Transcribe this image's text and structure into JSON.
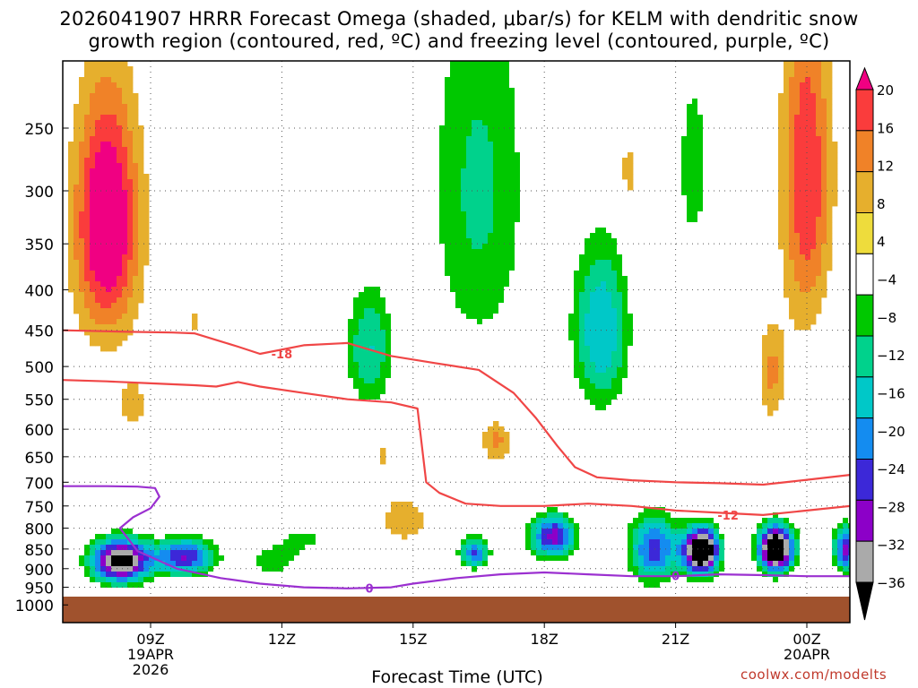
{
  "title": {
    "line1": "2026041907 HRRR Forecast Omega (shaded, μbar/s) for KELM with dendritic snow",
    "line2": "growth region (contoured, red, ºC) and freezing level (contoured, purple, ºC)"
  },
  "credit": "coolwx.com/modelts",
  "chart_data": {
    "type": "heatmap",
    "title": "2026041907 HRRR Forecast Omega (shaded, μbar/s) for KELM with dendritic snow growth region (contoured, red, ºC) and freezing level (contoured, purple, ºC)",
    "xlabel": "Forecast Time (UTC)",
    "ylabel": "",
    "x_ticks": [
      {
        "hour": 9,
        "label": "09Z",
        "date": "19APR",
        "year": "2026"
      },
      {
        "hour": 12,
        "label": "12Z"
      },
      {
        "hour": 15,
        "label": "15Z"
      },
      {
        "hour": 18,
        "label": "18Z"
      },
      {
        "hour": 21,
        "label": "21Z"
      },
      {
        "hour": 24,
        "label": "00Z",
        "date": "20APR"
      }
    ],
    "xlim": [
      7,
      25
    ],
    "y_ticks": [
      250,
      300,
      350,
      400,
      450,
      500,
      550,
      600,
      650,
      700,
      750,
      800,
      850,
      900,
      950,
      1000
    ],
    "ylim_hPa": [
      200,
      1015
    ],
    "surface_pressure_hPa": 970,
    "colorbar": {
      "levels": [
        -36,
        -32,
        -28,
        -24,
        -20,
        -16,
        -12,
        -8,
        -4,
        4,
        8,
        12,
        16,
        20
      ],
      "labels": [
        "20",
        "16",
        "12",
        "8",
        "4",
        "−4",
        "−8",
        "−12",
        "−16",
        "−20",
        "−24",
        "−28",
        "−32",
        "−36"
      ],
      "colors": [
        "#000000",
        "#aaaaaa",
        "#8c00c8",
        "#3c28d8",
        "#148cf0",
        "#00c8c8",
        "#00d28c",
        "#00c800",
        "#ffffff",
        "#eedc3c",
        "#e6af2d",
        "#f08228",
        "#fa3c3c",
        "#f00082"
      ]
    },
    "series": [
      {
        "name": "-18",
        "color": "#f04646",
        "x": [
          7,
          8.5,
          9.5,
          10,
          11,
          11.5,
          12.5,
          13.5,
          14.5,
          15.5,
          16.5,
          17.3,
          17.8,
          18.3,
          18.7,
          19.2,
          20,
          21,
          22,
          23,
          24,
          25
        ],
        "y": [
          450,
          452,
          453,
          454,
          472,
          482,
          470,
          467,
          485,
          495,
          505,
          540,
          580,
          630,
          670,
          690,
          696,
          700,
          702,
          705,
          695,
          685
        ]
      },
      {
        "name": "-12",
        "color": "#f04646",
        "x": [
          7,
          8,
          9,
          10,
          10.5,
          11,
          11.5,
          12.5,
          13.5,
          14.5,
          15.1,
          15.3,
          15.6,
          16.2,
          17,
          18,
          19,
          20,
          21,
          22,
          23,
          24,
          25
        ],
        "y": [
          520,
          522,
          525,
          528,
          530,
          523,
          530,
          540,
          550,
          555,
          565,
          700,
          722,
          745,
          750,
          750,
          745,
          750,
          760,
          765,
          770,
          760,
          750
        ]
      },
      {
        "name": "0",
        "color": "#9b30d0",
        "x": [
          7,
          8,
          8.7,
          9.1,
          9.2,
          9.0,
          8.6,
          8.3,
          8.7,
          9.6,
          10.6,
          11.5,
          12.5,
          13.5,
          14.5,
          15,
          16,
          17,
          18,
          19,
          20,
          21,
          22,
          23,
          24,
          25
        ],
        "y": [
          708,
          708,
          709,
          712,
          730,
          755,
          775,
          800,
          855,
          900,
          925,
          940,
          950,
          953,
          950,
          940,
          925,
          915,
          910,
          915,
          920,
          920,
          915,
          917,
          920,
          920
        ]
      }
    ],
    "contour_labels": [
      {
        "text": "-18",
        "hour": 12,
        "hPa": 482
      },
      {
        "text": "-12",
        "hour": 22.2,
        "hPa": 770
      },
      {
        "text": "0",
        "hour": 14.0,
        "hPa": 952
      },
      {
        "text": "0",
        "hour": 21.0,
        "hPa": 918
      }
    ],
    "omega_features": [
      {
        "h": 8.0,
        "p": 330,
        "a": 24,
        "sh": 0.7,
        "sp": 110
      },
      {
        "h": 8.6,
        "p": 560,
        "a": 5,
        "sh": 0.5,
        "sp": 55
      },
      {
        "h": 10.0,
        "p": 440,
        "a": 5,
        "sh": 0.12,
        "sp": 25
      },
      {
        "h": 8.3,
        "p": 880,
        "a": -40,
        "sh": 0.7,
        "sp": 60
      },
      {
        "h": 9.8,
        "p": 870,
        "a": -28,
        "sh": 0.7,
        "sp": 50
      },
      {
        "h": 11.8,
        "p": 880,
        "a": -10,
        "sh": 0.8,
        "sp": 50
      },
      {
        "h": 12.6,
        "p": 820,
        "a": -8,
        "sh": 0.8,
        "sp": 40
      },
      {
        "h": 14.0,
        "p": 475,
        "a": -16,
        "sh": 0.6,
        "sp": 95
      },
      {
        "h": 14.8,
        "p": 780,
        "a": 8,
        "sh": 0.5,
        "sp": 50
      },
      {
        "h": 14.3,
        "p": 640,
        "a": 5,
        "sh": 0.4,
        "sp": 50
      },
      {
        "h": 16.5,
        "p": 300,
        "a": -13,
        "sh": 1.3,
        "sp": 200
      },
      {
        "h": 16.9,
        "p": 620,
        "a": 10,
        "sh": 0.35,
        "sp": 40
      },
      {
        "h": 16.4,
        "p": 860,
        "a": -25,
        "sh": 0.35,
        "sp": 40
      },
      {
        "h": 17.5,
        "p": 380,
        "a": 5,
        "sh": 0.1,
        "sp": 25
      },
      {
        "h": 19.3,
        "p": 450,
        "a": -20,
        "sh": 0.7,
        "sp": 120
      },
      {
        "h": 18.2,
        "p": 820,
        "a": -30,
        "sh": 0.55,
        "sp": 55
      },
      {
        "h": 21.4,
        "p": 280,
        "a": -9,
        "sh": 0.7,
        "sp": 150
      },
      {
        "h": 19.9,
        "p": 290,
        "a": 7,
        "sh": 0.15,
        "sp": 50
      },
      {
        "h": 20.5,
        "p": 850,
        "a": -26,
        "sh": 0.6,
        "sp": 90
      },
      {
        "h": 21.6,
        "p": 855,
        "a": -48,
        "sh": 0.42,
        "sp": 60
      },
      {
        "h": 23.3,
        "p": 850,
        "a": -48,
        "sh": 0.42,
        "sp": 60
      },
      {
        "h": 24.0,
        "p": 290,
        "a": 16,
        "sh": 0.55,
        "sp": 140
      },
      {
        "h": 23.2,
        "p": 510,
        "a": 9,
        "sh": 0.3,
        "sp": 70
      },
      {
        "h": 24.9,
        "p": 850,
        "a": -30,
        "sh": 0.3,
        "sp": 60
      },
      {
        "h": 24.9,
        "p": 550,
        "a": -8,
        "sh": 0.5,
        "sp": 120
      }
    ]
  }
}
